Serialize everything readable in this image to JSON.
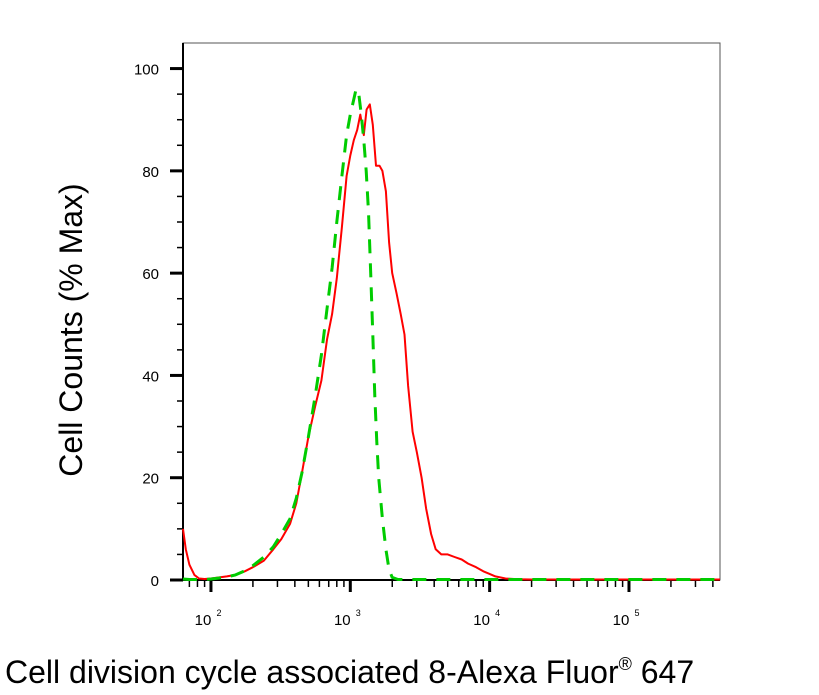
{
  "chart_data": {
    "type": "line",
    "xlabel": "Cell division cycle associated 8-Alexa Fluor",
    "xlabel_superscript": "®",
    "xlabel_suffix": " 647",
    "ylabel": "Cell Counts (% Max)",
    "x_scale": "log",
    "xlim": [
      63,
      450000
    ],
    "ylim": [
      0,
      105
    ],
    "y_ticks": [
      0,
      20,
      40,
      60,
      80,
      100
    ],
    "x_ticks": [
      {
        "value": 100,
        "base": "10",
        "exp": "2"
      },
      {
        "value": 1000,
        "base": "10",
        "exp": "3"
      },
      {
        "value": 10000,
        "base": "10",
        "exp": "4"
      },
      {
        "value": 100000,
        "base": "10",
        "exp": "5"
      }
    ],
    "grid": false,
    "series": [
      {
        "color": "#ff0000",
        "style": "solid",
        "x": [
          63,
          66,
          70,
          76,
          82,
          90,
          100,
          115,
          130,
          150,
          175,
          200,
          240,
          280,
          320,
          370,
          410,
          450,
          500,
          560,
          620,
          680,
          740,
          800,
          870,
          940,
          1000,
          1060,
          1120,
          1180,
          1250,
          1310,
          1380,
          1450,
          1530,
          1620,
          1700,
          1800,
          1900,
          2000,
          2150,
          2300,
          2450,
          2600,
          2800,
          3000,
          3250,
          3500,
          3800,
          4100,
          4500,
          5000,
          5600,
          6300,
          7000,
          8000,
          9000,
          10000,
          11000,
          13000,
          16000,
          20000,
          25000,
          30000,
          50000,
          100000,
          200000,
          450000
        ],
        "y": [
          10,
          6,
          3,
          1,
          0.3,
          0.2,
          0.3,
          0.5,
          0.7,
          1,
          1.7,
          2.5,
          3.8,
          6,
          8,
          11,
          15,
          21,
          28,
          34,
          39,
          47,
          52,
          59,
          69,
          79,
          83,
          86,
          88,
          91,
          87,
          92,
          93,
          89,
          81,
          81,
          80,
          76,
          66,
          60,
          56,
          52,
          48,
          38,
          29,
          25,
          20,
          14,
          9,
          6,
          5,
          5,
          4.5,
          4,
          3.2,
          2.5,
          1.7,
          1.2,
          0.7,
          0.3,
          0.15,
          0.1,
          0.1,
          0.1,
          0.1,
          0.1,
          0.1,
          0.1
        ]
      },
      {
        "color": "#00cc00",
        "style": "dashed",
        "x": [
          63,
          70,
          80,
          90,
          100,
          115,
          130,
          150,
          175,
          200,
          240,
          280,
          320,
          370,
          410,
          450,
          500,
          560,
          620,
          680,
          740,
          800,
          870,
          940,
          1000,
          1060,
          1100,
          1150,
          1200,
          1250,
          1300,
          1350,
          1400,
          1450,
          1500,
          1550,
          1600,
          1700,
          1800,
          1900,
          2000,
          2200,
          2500,
          3000,
          4000,
          6000,
          10000,
          20000,
          50000,
          100000,
          450000
        ],
        "y": [
          0.2,
          0.1,
          0.1,
          0.1,
          0.2,
          0.4,
          0.6,
          1,
          1.8,
          2.8,
          4.5,
          6.5,
          9,
          12,
          16,
          21,
          28,
          36,
          44,
          53,
          61,
          70,
          79,
          87,
          91,
          94,
          96,
          95,
          91,
          86,
          80,
          72,
          60,
          48,
          36,
          27,
          20,
          12,
          6,
          2,
          0.5,
          0.1,
          0.1,
          0.1,
          0.1,
          0.1,
          0.1,
          0.1,
          0.1,
          0.1,
          0.1
        ]
      }
    ]
  }
}
